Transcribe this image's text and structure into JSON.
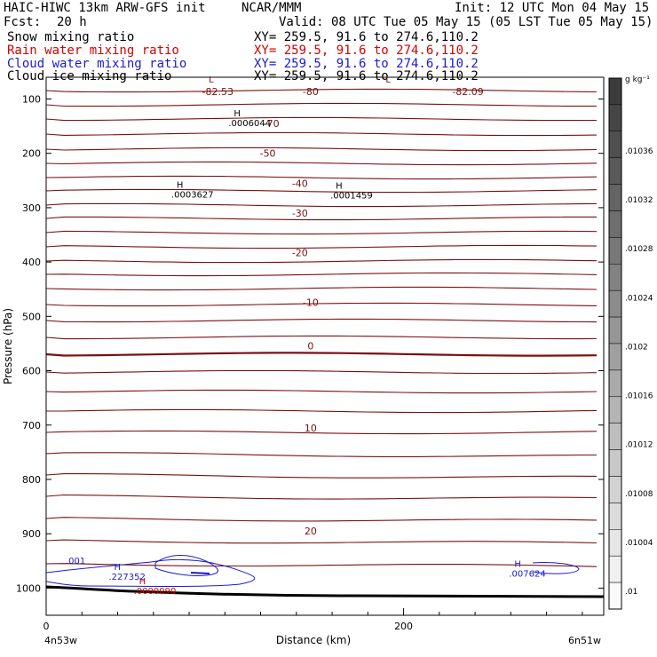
{
  "header": {
    "model": "HAIC-HIWC 13km ARW-GFS init",
    "center": "NCAR/MMM",
    "init": "Init: 12 UTC Mon 04 May 15",
    "fcst_label": "Fcst:",
    "fcst_value": "20 h",
    "valid": "Valid: 08 UTC Tue 05 May 15 (05 LST Tue 05 May 15)"
  },
  "fields": [
    {
      "name": "Snow mixing ratio",
      "xy": "XY= 259.5, 91.6 to 274.6,110.2",
      "color": "#000000"
    },
    {
      "name": "Rain water mixing ratio",
      "xy": "XY= 259.5, 91.6 to 274.6,110.2",
      "color": "#d40000"
    },
    {
      "name": "Cloud water mixing ratio",
      "xy": "XY= 259.5, 91.6 to 274.6,110.2",
      "color": "#1a1ad4"
    },
    {
      "name": "Cloud ice mixing ratio",
      "xy": "XY= 259.5, 91.6 to 274.6,110.2",
      "color": "#000000"
    }
  ],
  "chart_data": {
    "type": "line",
    "xlabel": "Distance (km)",
    "ylabel": "Pressure (hPa)",
    "x_range": [
      0,
      312
    ],
    "y_range": [
      1050,
      60
    ],
    "x_ticks": [
      0,
      200
    ],
    "y_ticks": [
      100,
      200,
      300,
      400,
      500,
      600,
      700,
      800,
      900,
      1000
    ],
    "x_endpoints": {
      "left": "4n53w",
      "right": "6n51w"
    },
    "isotherm_labels": [
      {
        "x": 96,
        "p": 86,
        "text": "-82.53"
      },
      {
        "x": 148,
        "p": 86,
        "text": "-80"
      },
      {
        "x": 236,
        "p": 86,
        "text": "-82.09"
      },
      {
        "x": 126,
        "p": 145,
        "text": "-70"
      },
      {
        "x": 124,
        "p": 200,
        "text": "-50"
      },
      {
        "x": 142,
        "p": 255,
        "text": "-40"
      },
      {
        "x": 142,
        "p": 310,
        "text": "-30"
      },
      {
        "x": 142,
        "p": 383,
        "text": "-20"
      },
      {
        "x": 148,
        "p": 474,
        "text": "-10"
      },
      {
        "x": 148,
        "p": 554,
        "text": "0"
      },
      {
        "x": 148,
        "p": 705,
        "text": "10"
      },
      {
        "x": 148,
        "p": 895,
        "text": "20"
      }
    ],
    "extrema": [
      {
        "kind": "L",
        "x": 91,
        "p": 70,
        "value": "",
        "color": "#7a1010"
      },
      {
        "kind": "L",
        "x": 190,
        "p": 70,
        "value": "",
        "color": "#7a1010"
      },
      {
        "kind": "H",
        "x": 105,
        "p": 132,
        "value": ".0006044",
        "color": "#000000"
      },
      {
        "kind": "H",
        "x": 73,
        "p": 263,
        "value": ".0003627",
        "color": "#000000"
      },
      {
        "kind": "H",
        "x": 162,
        "p": 265,
        "value": ".0001459",
        "color": "#000000"
      },
      {
        "kind": "H",
        "x": 38,
        "p": 967,
        "value": ".227352",
        "color": "#1a1ad4"
      },
      {
        "kind": "H",
        "x": 52,
        "p": 993,
        "value": ".0000090",
        "color": "#d40000"
      },
      {
        "kind": "H",
        "x": 262,
        "p": 961,
        "value": ".007624",
        "color": "#1a1ad4"
      }
    ],
    "cloud_water_contour_label": ".001",
    "colorbar": {
      "units": "g kg⁻¹",
      "labels": [
        ".01",
        ".01004",
        ".01008",
        ".01012",
        ".01016",
        ".0102",
        ".01024",
        ".01028",
        ".01032",
        ".01036"
      ]
    }
  }
}
